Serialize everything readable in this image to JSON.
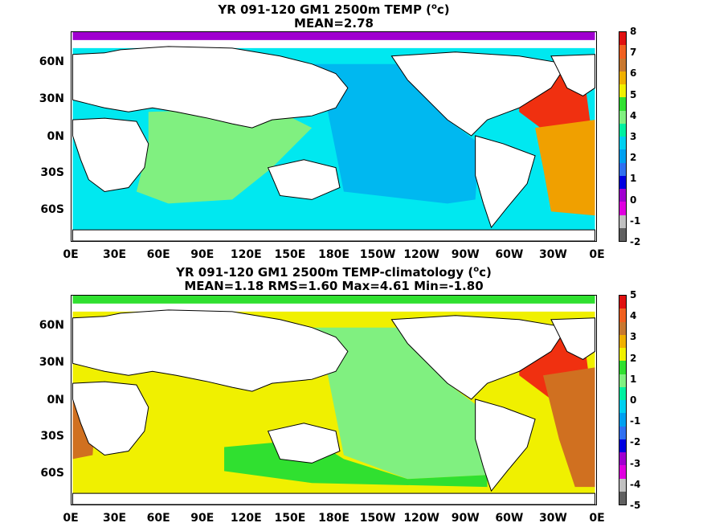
{
  "panels": [
    {
      "title_line1": "YR 091-120 GM1 2500m TEMP (",
      "title_sup": "o",
      "title_unit_tail": "c)",
      "title_line2": "MEAN=2.78",
      "colorbar_labels": [
        "8",
        "7",
        "6",
        "5",
        "4",
        "3",
        "2",
        "1",
        "0",
        "-1",
        "-2"
      ]
    },
    {
      "title_line1": "YR 091-120 GM1 2500m TEMP-climatology (",
      "title_sup": "o",
      "title_unit_tail": "c)",
      "title_line2": "MEAN=1.18   RMS=1.60   Max=4.61   Min=-1.80",
      "colorbar_labels": [
        "5",
        "4",
        "3",
        "2",
        "1",
        "0",
        "-1",
        "-2",
        "-3",
        "-4",
        "-5"
      ]
    }
  ],
  "lat_labels": [
    "60N",
    "30N",
    "0N",
    "30S",
    "60S"
  ],
  "lon_labels": [
    "0E",
    "30E",
    "60E",
    "90E",
    "120E",
    "150E",
    "180E",
    "150W",
    "120W",
    "90W",
    "60W",
    "30W",
    "0E"
  ],
  "colorbar_colors": [
    "#e01010",
    "#f06020",
    "#c87830",
    "#f0b000",
    "#f0f000",
    "#30e030",
    "#80f080",
    "#00f0a0",
    "#00d0f0",
    "#00a0f0",
    "#3070f0",
    "#0000e0",
    "#a000d0",
    "#e000e0",
    "#c0c0c0",
    "#606060"
  ],
  "field_colors": {
    "p1_pacific": "#00b8f0",
    "p1_indian": "#80f080",
    "p1_south": "#00e8f0",
    "p1_atlantic_n": "#f03010",
    "p1_atlantic": "#f0a000",
    "p2_pacific": "#80f080",
    "p2_indian": "#f0f000",
    "p2_south": "#30e030",
    "p2_atlantic_n": "#f03010",
    "p2_atlantic": "#d07020",
    "land": "#ffffff",
    "arctic": "#a000d0"
  }
}
